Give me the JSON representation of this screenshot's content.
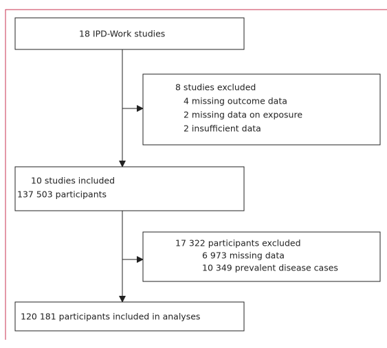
{
  "nodes": [
    {
      "label": "18 IPD-Work studies"
    },
    {
      "lines": [
        "8 studies excluded",
        "4 missing outcome data",
        "2 missing data on exposure",
        "2 insufficient data"
      ]
    },
    {
      "lines": [
        "10 studies included",
        "137 503 participants"
      ]
    },
    {
      "lines": [
        "17 322 participants excluded",
        "6 973 missing data",
        "10 349 prevalent disease cases"
      ]
    },
    {
      "label": "120 181 participants included in analyses"
    }
  ]
}
